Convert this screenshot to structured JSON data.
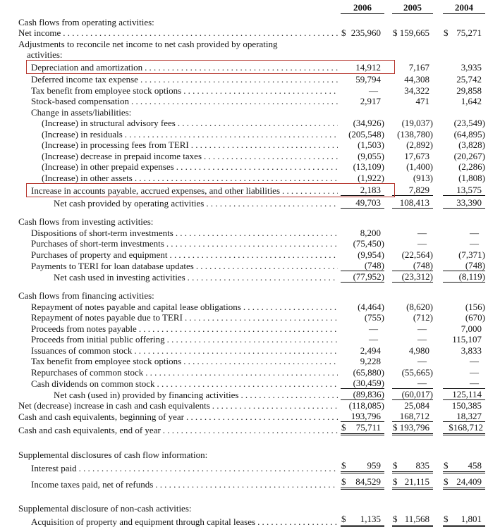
{
  "document": {
    "type": "consolidated-statement-of-cash-flows",
    "highlight_color": "#b5342c",
    "columns": [
      "2006",
      "2005",
      "2004"
    ],
    "rows": [
      {
        "kind": "section",
        "indent": 0,
        "label": "Cash flows from operating activities:"
      },
      {
        "kind": "data",
        "indent": 0,
        "label": "Net income",
        "values": [
          "$ 235,960",
          "$ 159,665",
          "$ 75,271"
        ]
      },
      {
        "kind": "section",
        "indent": 0,
        "label": "Adjustments to reconcile net income to net cash provided by operating"
      },
      {
        "kind": "section",
        "indent": "w",
        "label": "activities:"
      },
      {
        "kind": "data",
        "indent": 1,
        "label": "Depreciation and amortization",
        "values": [
          "14,912",
          "7,167",
          "3,935"
        ],
        "boxed": true
      },
      {
        "kind": "data",
        "indent": 1,
        "label": "Deferred income tax expense",
        "values": [
          "59,794",
          "44,308",
          "25,742"
        ]
      },
      {
        "kind": "data",
        "indent": 1,
        "label": "Tax benefit from employee stock options",
        "values": [
          "—",
          "34,322",
          "29,858"
        ]
      },
      {
        "kind": "data",
        "indent": 1,
        "label": "Stock-based compensation",
        "values": [
          "2,917",
          "471",
          "1,642"
        ]
      },
      {
        "kind": "section",
        "indent": 1,
        "label": "Change in assets/liabilities:"
      },
      {
        "kind": "data",
        "indent": 2,
        "label": "(Increase) in structural advisory fees",
        "values": [
          "(34,926)",
          "(19,037)",
          "(23,549)"
        ]
      },
      {
        "kind": "data",
        "indent": 2,
        "label": "(Increase) in residuals",
        "values": [
          "(205,548)",
          "(138,780)",
          "(64,895)"
        ]
      },
      {
        "kind": "data",
        "indent": 2,
        "label": "(Increase) in processing fees from TERI",
        "values": [
          "(1,503)",
          "(2,892)",
          "(3,828)"
        ]
      },
      {
        "kind": "data",
        "indent": 2,
        "label": "(Increase) decrease in prepaid income taxes",
        "values": [
          "(9,055)",
          "17,673",
          "(20,267)"
        ]
      },
      {
        "kind": "data",
        "indent": 2,
        "label": "(Increase) in other prepaid expenses",
        "values": [
          "(13,109)",
          "(1,400)",
          "(2,286)"
        ]
      },
      {
        "kind": "data",
        "indent": 2,
        "label": "(Increase) in other assets",
        "values": [
          "(1,922)",
          "(913)",
          "(1,808)"
        ]
      },
      {
        "kind": "data",
        "indent": 1,
        "label": "Increase in accounts payable, accrued expenses, and other liabilities",
        "values": [
          "2,183",
          "7,829",
          "13,575"
        ],
        "rule": "single",
        "boxed": true
      },
      {
        "kind": "data",
        "indent": 3,
        "label": "Net cash provided by operating activities",
        "values": [
          "49,703",
          "108,413",
          "33,390"
        ],
        "rule": "single"
      },
      {
        "kind": "gap"
      },
      {
        "kind": "section",
        "indent": 0,
        "label": "Cash flows from investing activities:"
      },
      {
        "kind": "data",
        "indent": 1,
        "label": "Dispositions of short-term investments",
        "values": [
          "8,200",
          "—",
          "—"
        ]
      },
      {
        "kind": "data",
        "indent": 1,
        "label": "Purchases of short-term investments",
        "values": [
          "(75,450)",
          "—",
          "—"
        ]
      },
      {
        "kind": "data",
        "indent": 1,
        "label": "Purchases of property and equipment",
        "values": [
          "(9,954)",
          "(22,564)",
          "(7,371)"
        ]
      },
      {
        "kind": "data",
        "indent": 1,
        "label": "Payments to TERI for loan database updates",
        "values": [
          "(748)",
          "(748)",
          "(748)"
        ],
        "rule": "single"
      },
      {
        "kind": "data",
        "indent": 3,
        "label": "Net cash used in investing activities",
        "values": [
          "(77,952)",
          "(23,312)",
          "(8,119)"
        ],
        "rule": "single"
      },
      {
        "kind": "gap"
      },
      {
        "kind": "section",
        "indent": 0,
        "label": "Cash flows from financing activities:"
      },
      {
        "kind": "data",
        "indent": 1,
        "label": "Repayment of notes payable and capital lease obligations",
        "values": [
          "(4,464)",
          "(8,620)",
          "(156)"
        ]
      },
      {
        "kind": "data",
        "indent": 1,
        "label": "Repayment of notes payable due to TERI",
        "values": [
          "(755)",
          "(712)",
          "(670)"
        ]
      },
      {
        "kind": "data",
        "indent": 1,
        "label": "Proceeds from notes payable",
        "values": [
          "—",
          "—",
          "7,000"
        ]
      },
      {
        "kind": "data",
        "indent": 1,
        "label": "Proceeds from initial public offering",
        "values": [
          "—",
          "—",
          "115,107"
        ]
      },
      {
        "kind": "data",
        "indent": 1,
        "label": "Issuances of common stock",
        "values": [
          "2,494",
          "4,980",
          "3,833"
        ]
      },
      {
        "kind": "data",
        "indent": 1,
        "label": "Tax benefit from employee stock options",
        "values": [
          "9,228",
          "—",
          "—"
        ]
      },
      {
        "kind": "data",
        "indent": 1,
        "label": "Repurchases of common stock",
        "values": [
          "(65,880)",
          "(55,665)",
          "—"
        ]
      },
      {
        "kind": "data",
        "indent": 1,
        "label": "Cash dividends on common stock",
        "values": [
          "(30,459)",
          "—",
          "—"
        ],
        "rule": "single"
      },
      {
        "kind": "data",
        "indent": 3,
        "label": "Net cash (used in) provided by financing activities",
        "values": [
          "(89,836)",
          "(60,017)",
          "125,114"
        ],
        "rule": "single"
      },
      {
        "kind": "data",
        "indent": 0,
        "label": "Net (decrease) increase in cash and cash equivalents",
        "values": [
          "(118,085)",
          "25,084",
          "150,385"
        ]
      },
      {
        "kind": "data",
        "indent": 0,
        "label": "Cash and cash equivalents, beginning of year",
        "values": [
          "193,796",
          "168,712",
          "18,327"
        ],
        "rule": "single"
      },
      {
        "kind": "data",
        "indent": 0,
        "label": "Cash and cash equivalents, end of year",
        "values": [
          "$ 75,711",
          "$ 193,796",
          "$168,712"
        ],
        "rule": "double"
      },
      {
        "kind": "gap",
        "size": "big"
      },
      {
        "kind": "section",
        "indent": 0,
        "label": "Supplemental disclosures of cash flow information:"
      },
      {
        "kind": "data",
        "indent": 1,
        "label": "Interest paid",
        "values": [
          "$ 959",
          "$ 835",
          "$ 458"
        ],
        "rule": "double"
      },
      {
        "kind": "data",
        "indent": 1,
        "label": "Income taxes paid, net of refunds",
        "values": [
          "$ 84,529",
          "$ 21,115",
          "$ 24,409"
        ],
        "rule": "double"
      },
      {
        "kind": "gap",
        "size": "big"
      },
      {
        "kind": "section",
        "indent": 0,
        "label": "Supplemental disclosure of non-cash activities:"
      },
      {
        "kind": "data",
        "indent": 1,
        "label": "Acquisition of property and equipment through capital leases",
        "values": [
          "$ 1,135",
          "$ 11,568",
          "$ 1,801"
        ],
        "rule": "double"
      }
    ]
  }
}
